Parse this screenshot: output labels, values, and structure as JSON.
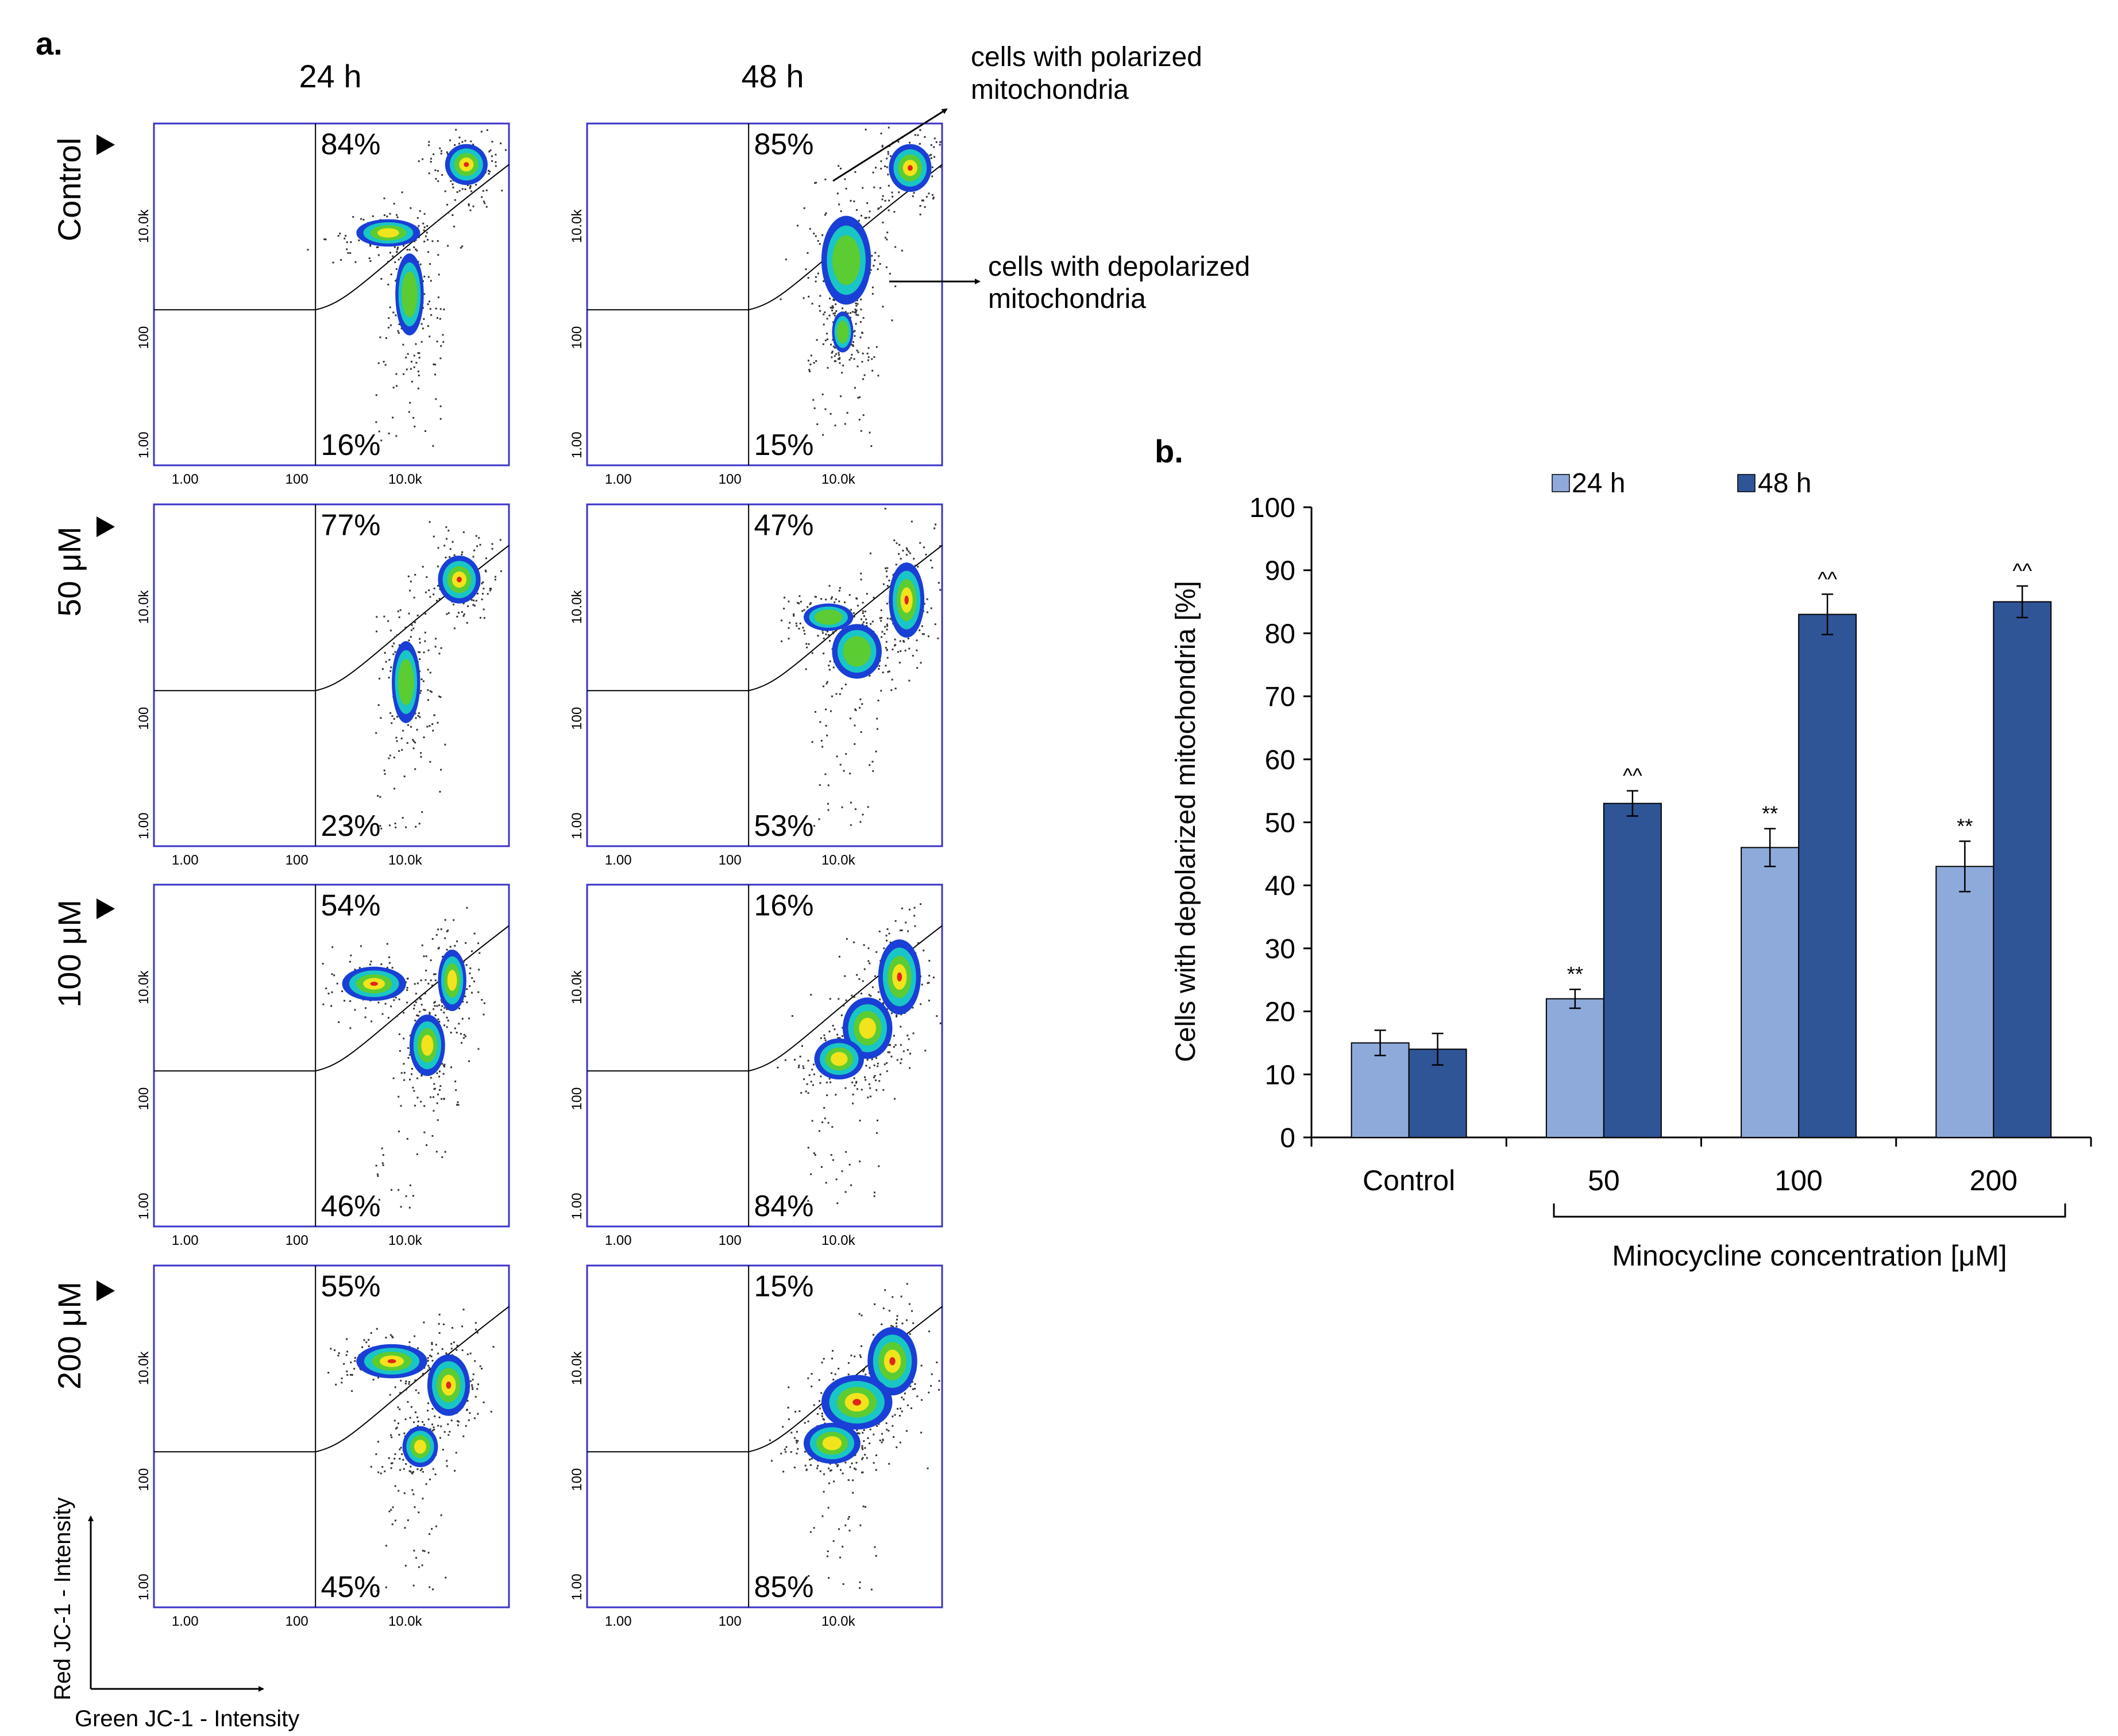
{
  "panel_a": {
    "label": "a.",
    "col_headers": [
      "24 h",
      "48 h"
    ],
    "row_labels": [
      "Control",
      "50 μM",
      "100 μM",
      "200 μM"
    ],
    "tick_labels": [
      "1.00",
      "100",
      "10.0k"
    ],
    "percentages": [
      {
        "top": "84%",
        "bottom": "16%"
      },
      {
        "top": "85%",
        "bottom": "15%"
      },
      {
        "top": "77%",
        "bottom": "23%"
      },
      {
        "top": "47%",
        "bottom": "53%"
      },
      {
        "top": "54%",
        "bottom": "46%"
      },
      {
        "top": "16%",
        "bottom": "84%"
      },
      {
        "top": "55%",
        "bottom": "45%"
      },
      {
        "top": "15%",
        "bottom": "85%"
      }
    ],
    "annotation_polarized": [
      "cells with polarized",
      "mitochondria"
    ],
    "annotation_depolarized": [
      "cells with depolarized",
      "mitochondria"
    ],
    "y_axis_label": "Red JC-1 - Intensity",
    "x_axis_label": "Green JC-1 - Intensity",
    "colors": {
      "frame": "#3a33c8"
    }
  },
  "panel_b_label": "b.",
  "chart_data": {
    "type": "bar",
    "categories": [
      "Control",
      "50",
      "100",
      "200"
    ],
    "series": [
      {
        "name": "24 h",
        "values": [
          15,
          22,
          46,
          43
        ],
        "errors": [
          2,
          1.5,
          3,
          4
        ],
        "marks": [
          "",
          "**",
          "**",
          "**"
        ],
        "color": "#8eaadb"
      },
      {
        "name": "48 h",
        "values": [
          14,
          53,
          83,
          85
        ],
        "errors": [
          2.5,
          2,
          3.2,
          2.5
        ],
        "marks": [
          "",
          "^^",
          "^^",
          "^^"
        ],
        "color": "#2f5597"
      }
    ],
    "ylabel": "Cells with depolarized mitochondria [%]",
    "xlabel": "Minocycline concentration [μM]",
    "ylim": [
      0,
      100
    ],
    "yticks": [
      "0",
      "10",
      "20",
      "30",
      "40",
      "50",
      "60",
      "70",
      "80",
      "90",
      "100"
    ],
    "legend_position": "top"
  }
}
